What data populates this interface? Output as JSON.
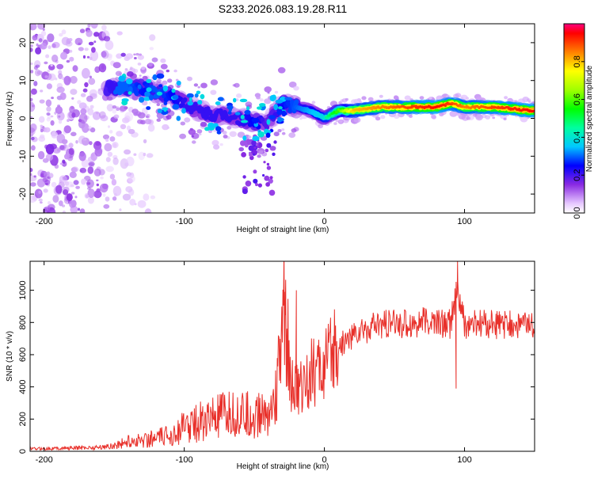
{
  "chart_data": [
    {
      "type": "heatmap",
      "title": "S233.2026.083.19.28.R11",
      "xlabel": "Height of straight line (km)",
      "ylabel": "Frequency (Hz)",
      "xlim": [
        -210,
        150
      ],
      "ylim": [
        -25,
        25
      ],
      "xticks": [
        -200,
        -100,
        0,
        100
      ],
      "yticks": [
        -20,
        -10,
        0,
        10,
        20
      ],
      "tick_labels_x": [
        "-200",
        "-100",
        "0",
        "100"
      ],
      "tick_labels_y": [
        "-20",
        "-10",
        "0",
        "10",
        "20"
      ],
      "colorbar": {
        "label": "Normalized spectral amplitude",
        "range": [
          0,
          1
        ],
        "ticks": [
          0.0,
          0.2,
          0.4,
          0.6,
          0.8
        ],
        "tick_labels": [
          "0.0",
          "0.2",
          "0.4",
          "0.6",
          "0.8"
        ]
      },
      "ridge": {
        "x": [
          -150,
          -140,
          -130,
          -120,
          -110,
          -100,
          -90,
          -80,
          -70,
          -60,
          -50,
          -40,
          -30,
          -20,
          -10,
          0,
          10,
          20,
          40,
          60,
          80,
          90,
          100,
          120,
          150
        ],
        "frequency": [
          8,
          8,
          8,
          7,
          6,
          4,
          2,
          1,
          1,
          0,
          -1,
          -1,
          4,
          3,
          2,
          0,
          2,
          2,
          3,
          3,
          3,
          4,
          3,
          3,
          2
        ],
        "amplitude": [
          0.35,
          0.35,
          0.3,
          0.35,
          0.3,
          0.25,
          0.25,
          0.25,
          0.25,
          0.25,
          0.3,
          0.2,
          0.3,
          0.35,
          0.4,
          0.45,
          0.6,
          0.8,
          0.85,
          0.9,
          0.95,
          0.9,
          0.85,
          0.9,
          0.95
        ]
      }
    },
    {
      "type": "line",
      "xlabel": "Height of straight line (km)",
      "ylabel": "SNR (10 * v/v)",
      "xlim": [
        -210,
        150
      ],
      "ylim": [
        0,
        1180
      ],
      "xticks": [
        -200,
        -100,
        0,
        100
      ],
      "yticks": [
        0,
        200,
        400,
        600,
        800,
        1000
      ],
      "tick_labels_x": [
        "-200",
        "-100",
        "0",
        "100"
      ],
      "tick_labels_y": [
        "0",
        "200",
        "400",
        "600",
        "800",
        "1000"
      ],
      "series": [
        {
          "name": "SNR",
          "color": "#e8302a",
          "x": [
            -210,
            -180,
            -160,
            -150,
            -140,
            -130,
            -120,
            -110,
            -100,
            -90,
            -80,
            -70,
            -60,
            -50,
            -40,
            -35,
            -30,
            -28,
            -25,
            -20,
            -15,
            -10,
            -5,
            0,
            5,
            10,
            20,
            30,
            40,
            50,
            60,
            70,
            80,
            90,
            95,
            100,
            110,
            120,
            130,
            140,
            150
          ],
          "values": [
            15,
            20,
            25,
            35,
            60,
            70,
            80,
            100,
            150,
            180,
            200,
            220,
            230,
            210,
            250,
            300,
            600,
            900,
            420,
            380,
            420,
            480,
            500,
            520,
            580,
            650,
            720,
            760,
            780,
            790,
            795,
            800,
            800,
            790,
            1000,
            780,
            790,
            790,
            780,
            790,
            780
          ],
          "spikes": [
            {
              "x": -28,
              "y": 990
            },
            {
              "x": -20,
              "y": 1000
            },
            {
              "x": 95,
              "y": 1180
            },
            {
              "x": 94,
              "y": 390
            }
          ]
        }
      ]
    }
  ],
  "colors": {
    "line": "#e8302a",
    "axis": "#000000",
    "background": "#ffffff"
  }
}
